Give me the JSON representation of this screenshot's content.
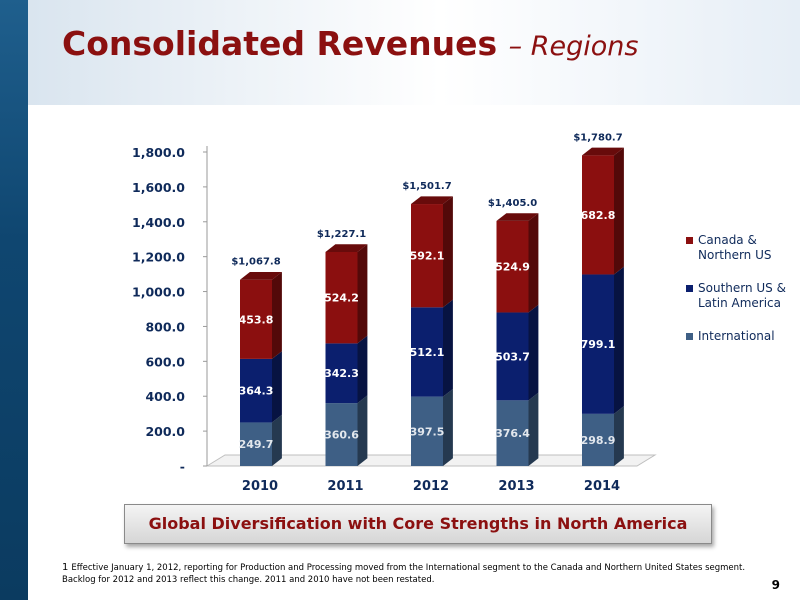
{
  "header": {
    "title": "Consolidated Revenues",
    "subtitle": "– Regions"
  },
  "chart_data": {
    "type": "bar",
    "stacked": true,
    "categories": [
      "2010",
      "2011",
      "2012",
      "2013",
      "2014"
    ],
    "ylim": [
      0,
      1800
    ],
    "yticks": [
      "-",
      "200.0",
      "400.0",
      "600.0",
      "800.0",
      "1,000.0",
      "1,200.0",
      "1,400.0",
      "1,600.0",
      "1,800.0"
    ],
    "series": [
      {
        "name": "International",
        "color": "#3e5f85",
        "values": [
          249.7,
          360.6,
          397.5,
          376.4,
          298.9
        ],
        "labels": [
          "249.7",
          "360.6",
          "397.5",
          "376.4",
          "298.9"
        ]
      },
      {
        "name": "Southern US & Latin America",
        "color": "#0b1f6e",
        "values": [
          364.3,
          342.3,
          512.1,
          503.7,
          799.1
        ],
        "labels": [
          "364.3",
          "342.3",
          "512.1",
          "503.7",
          "799.1"
        ]
      },
      {
        "name": "Canada & Northern US",
        "color": "#8b0f0f",
        "values": [
          453.8,
          524.2,
          592.1,
          524.9,
          682.8
        ],
        "labels": [
          "453.8",
          "524.2",
          "592.1",
          "524.9",
          "682.8"
        ]
      }
    ],
    "totals": [
      "$1,067.8",
      "$1,227.1",
      "$1,501.7",
      "$1,405.0",
      "$1,780.7"
    ],
    "legend_position": "right"
  },
  "legend": {
    "items": [
      {
        "label": "Canada & Northern US",
        "color": "#8b0f0f"
      },
      {
        "label": "Southern US & Latin America",
        "color": "#0b1f6e"
      },
      {
        "label": "International",
        "color": "#3e5f85"
      }
    ]
  },
  "banner": {
    "text": "Global Diversification with Core Strengths in North America"
  },
  "footnote": {
    "marker": "1",
    "text": "Effective January 1, 2012, reporting for Production and Processing moved from the International segment to the Canada and Northern United States segment. Backlog for 2012 and 2013 reflect this change. 2011 and 2010 have not been restated."
  },
  "page_number": "9"
}
